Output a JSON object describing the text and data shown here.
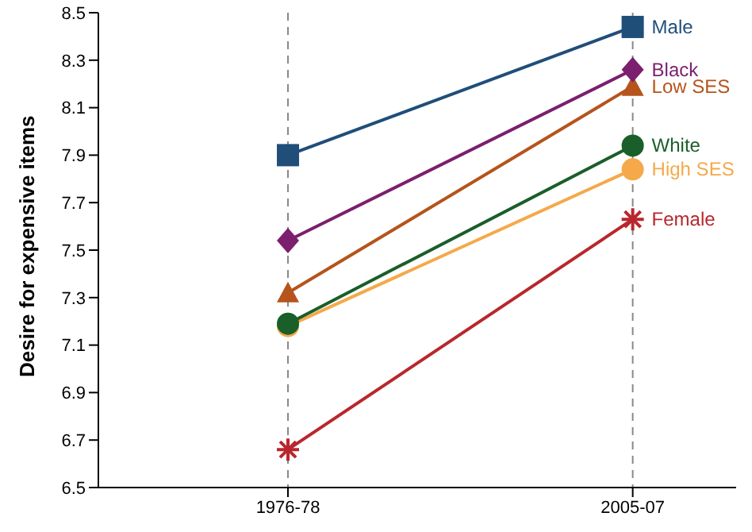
{
  "chart_data": {
    "type": "line",
    "ylabel": "Desire for expensive items",
    "categories": [
      "1976-78",
      "2005-07"
    ],
    "series": [
      {
        "name": "Male",
        "color": "#1f4e79",
        "marker": "square",
        "values": [
          7.9,
          8.44
        ]
      },
      {
        "name": "Black",
        "color": "#7b1f6e",
        "marker": "diamond",
        "values": [
          7.54,
          8.26
        ]
      },
      {
        "name": "Low SES",
        "color": "#b5541d",
        "marker": "triangle",
        "values": [
          7.32,
          8.19
        ]
      },
      {
        "name": "White",
        "color": "#1a5e2a",
        "marker": "circle",
        "values": [
          7.19,
          7.94
        ]
      },
      {
        "name": "High SES",
        "color": "#f5a94a",
        "marker": "circle",
        "values": [
          7.18,
          7.84
        ]
      },
      {
        "name": "Female",
        "color": "#b8272d",
        "marker": "cross",
        "values": [
          6.66,
          7.63
        ]
      }
    ],
    "ylim": [
      6.5,
      8.5
    ],
    "yticks": [
      6.5,
      6.7,
      6.9,
      7.1,
      7.3,
      7.5,
      7.7,
      7.9,
      8.1,
      8.3,
      8.5
    ],
    "grid": "x",
    "legend": false
  }
}
